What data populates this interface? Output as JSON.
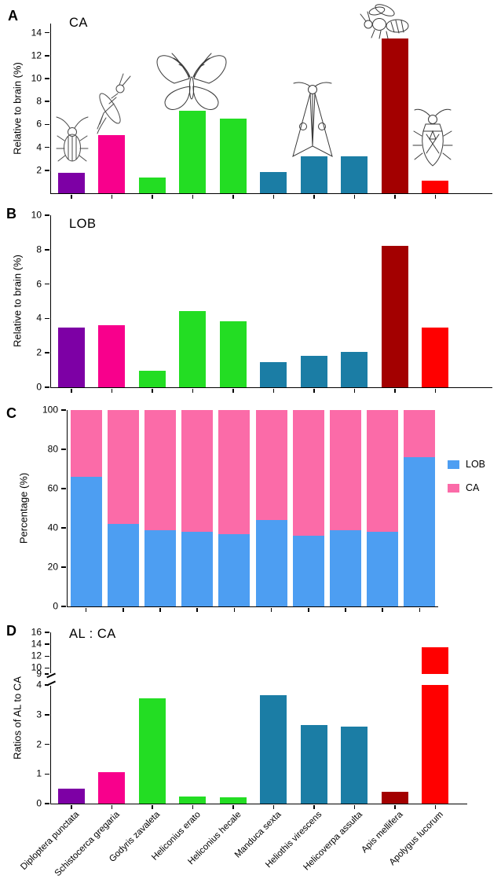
{
  "species": [
    {
      "label": "Diploptera punctata",
      "color": "#7D00A5",
      "icon": "cockroach-icon"
    },
    {
      "label": "Schistocerca gregaria",
      "color": "#F8008C",
      "icon": "locust-icon"
    },
    {
      "label": "Godyris zavaleta",
      "color": "#23DD23",
      "icon": "butterfly-icon"
    },
    {
      "label": "Heliconius erato",
      "color": "#23DD23",
      "icon": "butterfly-icon"
    },
    {
      "label": "Heliconius hecale",
      "color": "#23DD23",
      "icon": "butterfly-icon"
    },
    {
      "label": "Manduca sexta",
      "color": "#1B7DA5",
      "icon": "moth-icon"
    },
    {
      "label": "Heliothis virescens",
      "color": "#1B7DA5",
      "icon": "moth-icon"
    },
    {
      "label": "Helicoverpa assulta",
      "color": "#1B7DA5",
      "icon": "moth-icon"
    },
    {
      "label": "Apis mellifera",
      "color": "#A30000",
      "icon": "bee-icon"
    },
    {
      "label": "Apolygus lucorum",
      "color": "#FF0000",
      "icon": "bug-icon"
    }
  ],
  "chart_data": [
    {
      "panel_label": "A",
      "type": "bar",
      "title": "CA",
      "ylabel": "Relative to brain (%)",
      "ylim": [
        0,
        14.8
      ],
      "yticks": [
        2,
        4,
        6,
        8,
        10,
        12,
        14
      ],
      "categories": [
        "Diploptera punctata",
        "Schistocerca gregaria",
        "Godyris zavaleta",
        "Heliconius erato",
        "Heliconius hecale",
        "Manduca sexta",
        "Heliothis virescens",
        "Helicoverpa assulta",
        "Apis mellifera",
        "Apolygus lucorum"
      ],
      "values": [
        1.8,
        5.1,
        1.4,
        7.2,
        6.5,
        1.85,
        3.25,
        3.25,
        13.5,
        1.1
      ]
    },
    {
      "panel_label": "B",
      "type": "bar",
      "title": "LOB",
      "ylabel": "Relative to brain (%)",
      "ylim": [
        0,
        10
      ],
      "yticks": [
        0,
        2,
        4,
        6,
        8,
        10
      ],
      "categories": [
        "Diploptera punctata",
        "Schistocerca gregaria",
        "Godyris zavaleta",
        "Heliconius erato",
        "Heliconius hecale",
        "Manduca sexta",
        "Heliothis virescens",
        "Helicoverpa assulta",
        "Apis mellifera",
        "Apolygus lucorum"
      ],
      "values": [
        3.45,
        3.6,
        0.95,
        4.45,
        3.85,
        1.45,
        1.85,
        2.05,
        8.2,
        3.45
      ]
    },
    {
      "panel_label": "C",
      "type": "stacked-bar",
      "ylabel": "Percentage  (%)",
      "ylim": [
        0,
        100
      ],
      "yticks": [
        0,
        20,
        40,
        60,
        80,
        100
      ],
      "legend_position": "right",
      "categories": [
        "Diploptera punctata",
        "Schistocerca gregaria",
        "Godyris zavaleta",
        "Heliconius erato",
        "Heliconius hecale",
        "Manduca sexta",
        "Heliothis virescens",
        "Helicoverpa assulta",
        "Apis mellifera",
        "Apolygus lucorum"
      ],
      "series": [
        {
          "name": "LOB",
          "color": "#4D9EF2",
          "values": [
            66,
            42,
            39,
            38,
            37,
            44,
            36,
            39,
            38,
            76
          ]
        },
        {
          "name": "CA",
          "color": "#FB6BA8",
          "values": [
            34,
            58,
            61,
            62,
            63,
            56,
            64,
            61,
            62,
            24
          ]
        }
      ]
    },
    {
      "panel_label": "D",
      "type": "bar-broken-axis",
      "title": "AL : CA",
      "ylabel": "Ratios of AL to CA",
      "yticks_lower": [
        0,
        1,
        2,
        3,
        4
      ],
      "yticks_upper": [
        9,
        10,
        12,
        14,
        16
      ],
      "axis_break": [
        4,
        9
      ],
      "categories": [
        "Diploptera punctata",
        "Schistocerca gregaria",
        "Godyris zavaleta",
        "Heliconius erato",
        "Heliconius hecale",
        "Manduca sexta",
        "Heliothis virescens",
        "Helicoverpa assulta",
        "Apis mellifera",
        "Apolygus lucorum"
      ],
      "values": [
        0.5,
        1.05,
        3.55,
        0.25,
        0.22,
        3.65,
        2.65,
        2.6,
        0.4,
        13.5
      ]
    }
  ]
}
